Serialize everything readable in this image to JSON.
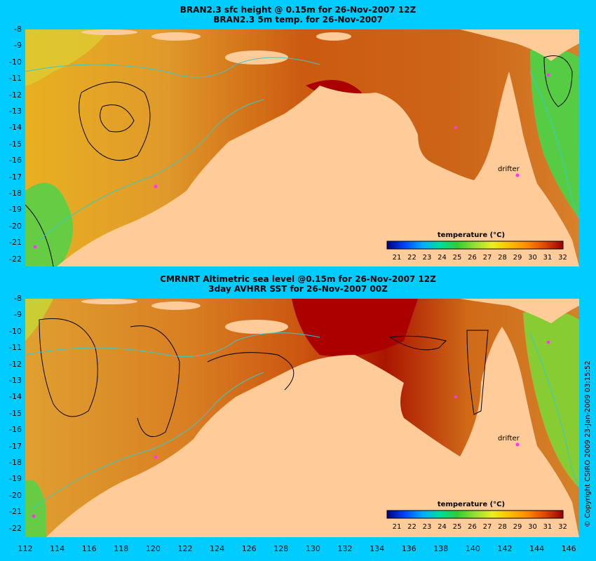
{
  "panel1": {
    "title_line1": "BRAN2.3 sfc height @ 0.15m for 26-Nov-2007 12Z",
    "title_line2": "BRAN2.3 5m temp. for 26-Nov-2007"
  },
  "panel2": {
    "title_line1": "CMRNRT Altimetric sea level  @0.15m  for 26-Nov-2007 12Z",
    "title_line2": "3day AVHRR SST for 26-Nov-2007 00Z"
  },
  "y_ticks": [
    "-8",
    "-9",
    "-10",
    "-11",
    "-12",
    "-13",
    "-14",
    "-15",
    "-16",
    "-17",
    "-18",
    "-19",
    "-20",
    "-21",
    "-22"
  ],
  "x_ticks": [
    "112",
    "114",
    "116",
    "118",
    "120",
    "122",
    "124",
    "126",
    "128",
    "130",
    "132",
    "134",
    "136",
    "138",
    "140",
    "142",
    "144",
    "146"
  ],
  "colorbar": {
    "title": "temperature (°C)",
    "ticks": [
      "21",
      "22",
      "23",
      "24",
      "25",
      "26",
      "27",
      "28",
      "29",
      "30",
      "31",
      "32"
    ]
  },
  "drifter_label": "drifter",
  "copyright": "© Copyright CSIRO 2009  23-Jan-2009 03:15:52",
  "colors": {
    "background": "#00ccff",
    "land": "#ffcc99",
    "warm": "#cc5500",
    "hot": "#aa0000",
    "mid": "#ee9922",
    "cool": "#ddcc22",
    "cooler": "#66cc44",
    "marker": "#ff33ff",
    "contour": "#000000",
    "bathymetry": "#33cccc"
  }
}
